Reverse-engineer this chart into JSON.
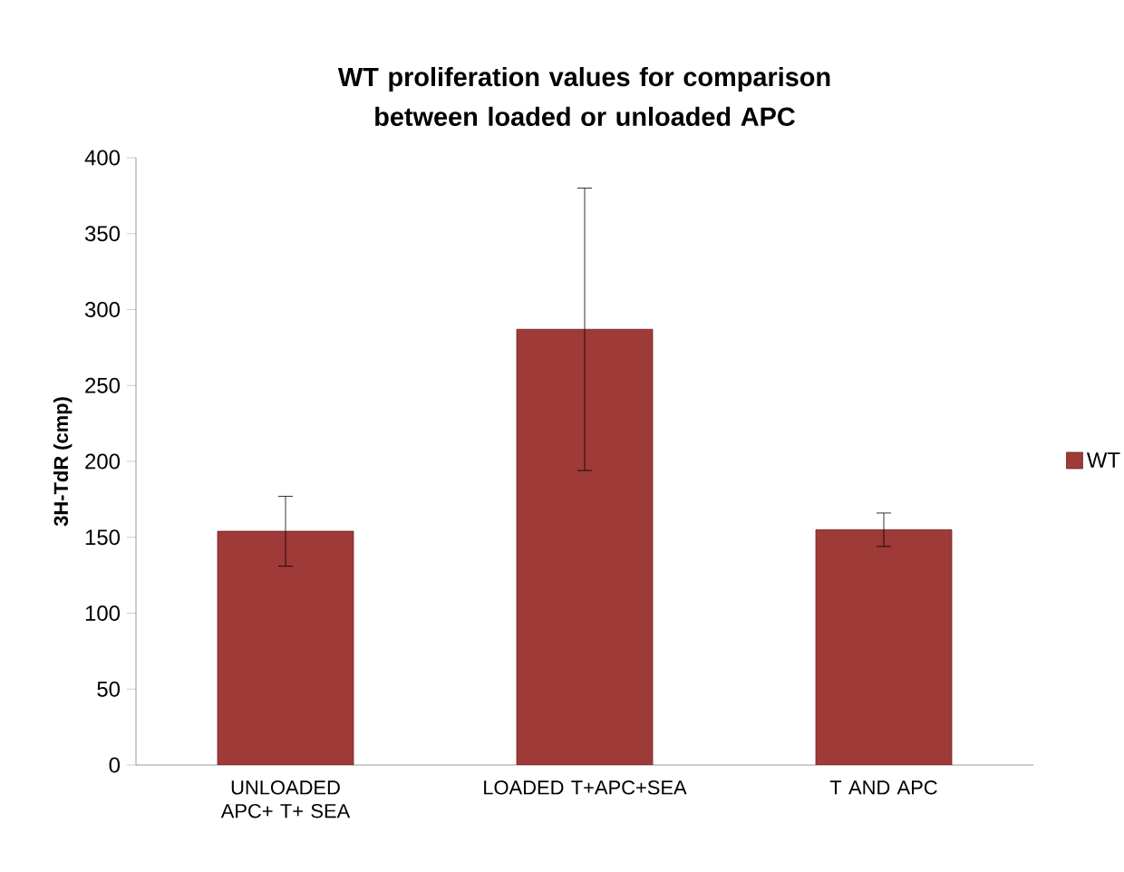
{
  "chart_data": {
    "type": "bar",
    "title": "WT proliferation values for comparison between loaded or unloaded APC",
    "ylabel": "3H-TdR (cmp)",
    "categories": [
      "UNLOADED APC+ T+ SEA",
      "LOADED T+APC+SEA",
      "T AND APC"
    ],
    "series": [
      {
        "name": "WT",
        "color": "#9e3a38",
        "values": [
          154,
          287,
          155
        ],
        "errors": [
          23,
          93,
          11
        ]
      }
    ],
    "ylim": [
      0,
      400
    ],
    "yticks": [
      0,
      50,
      100,
      150,
      200,
      250,
      300,
      350,
      400
    ],
    "legend": "right"
  }
}
